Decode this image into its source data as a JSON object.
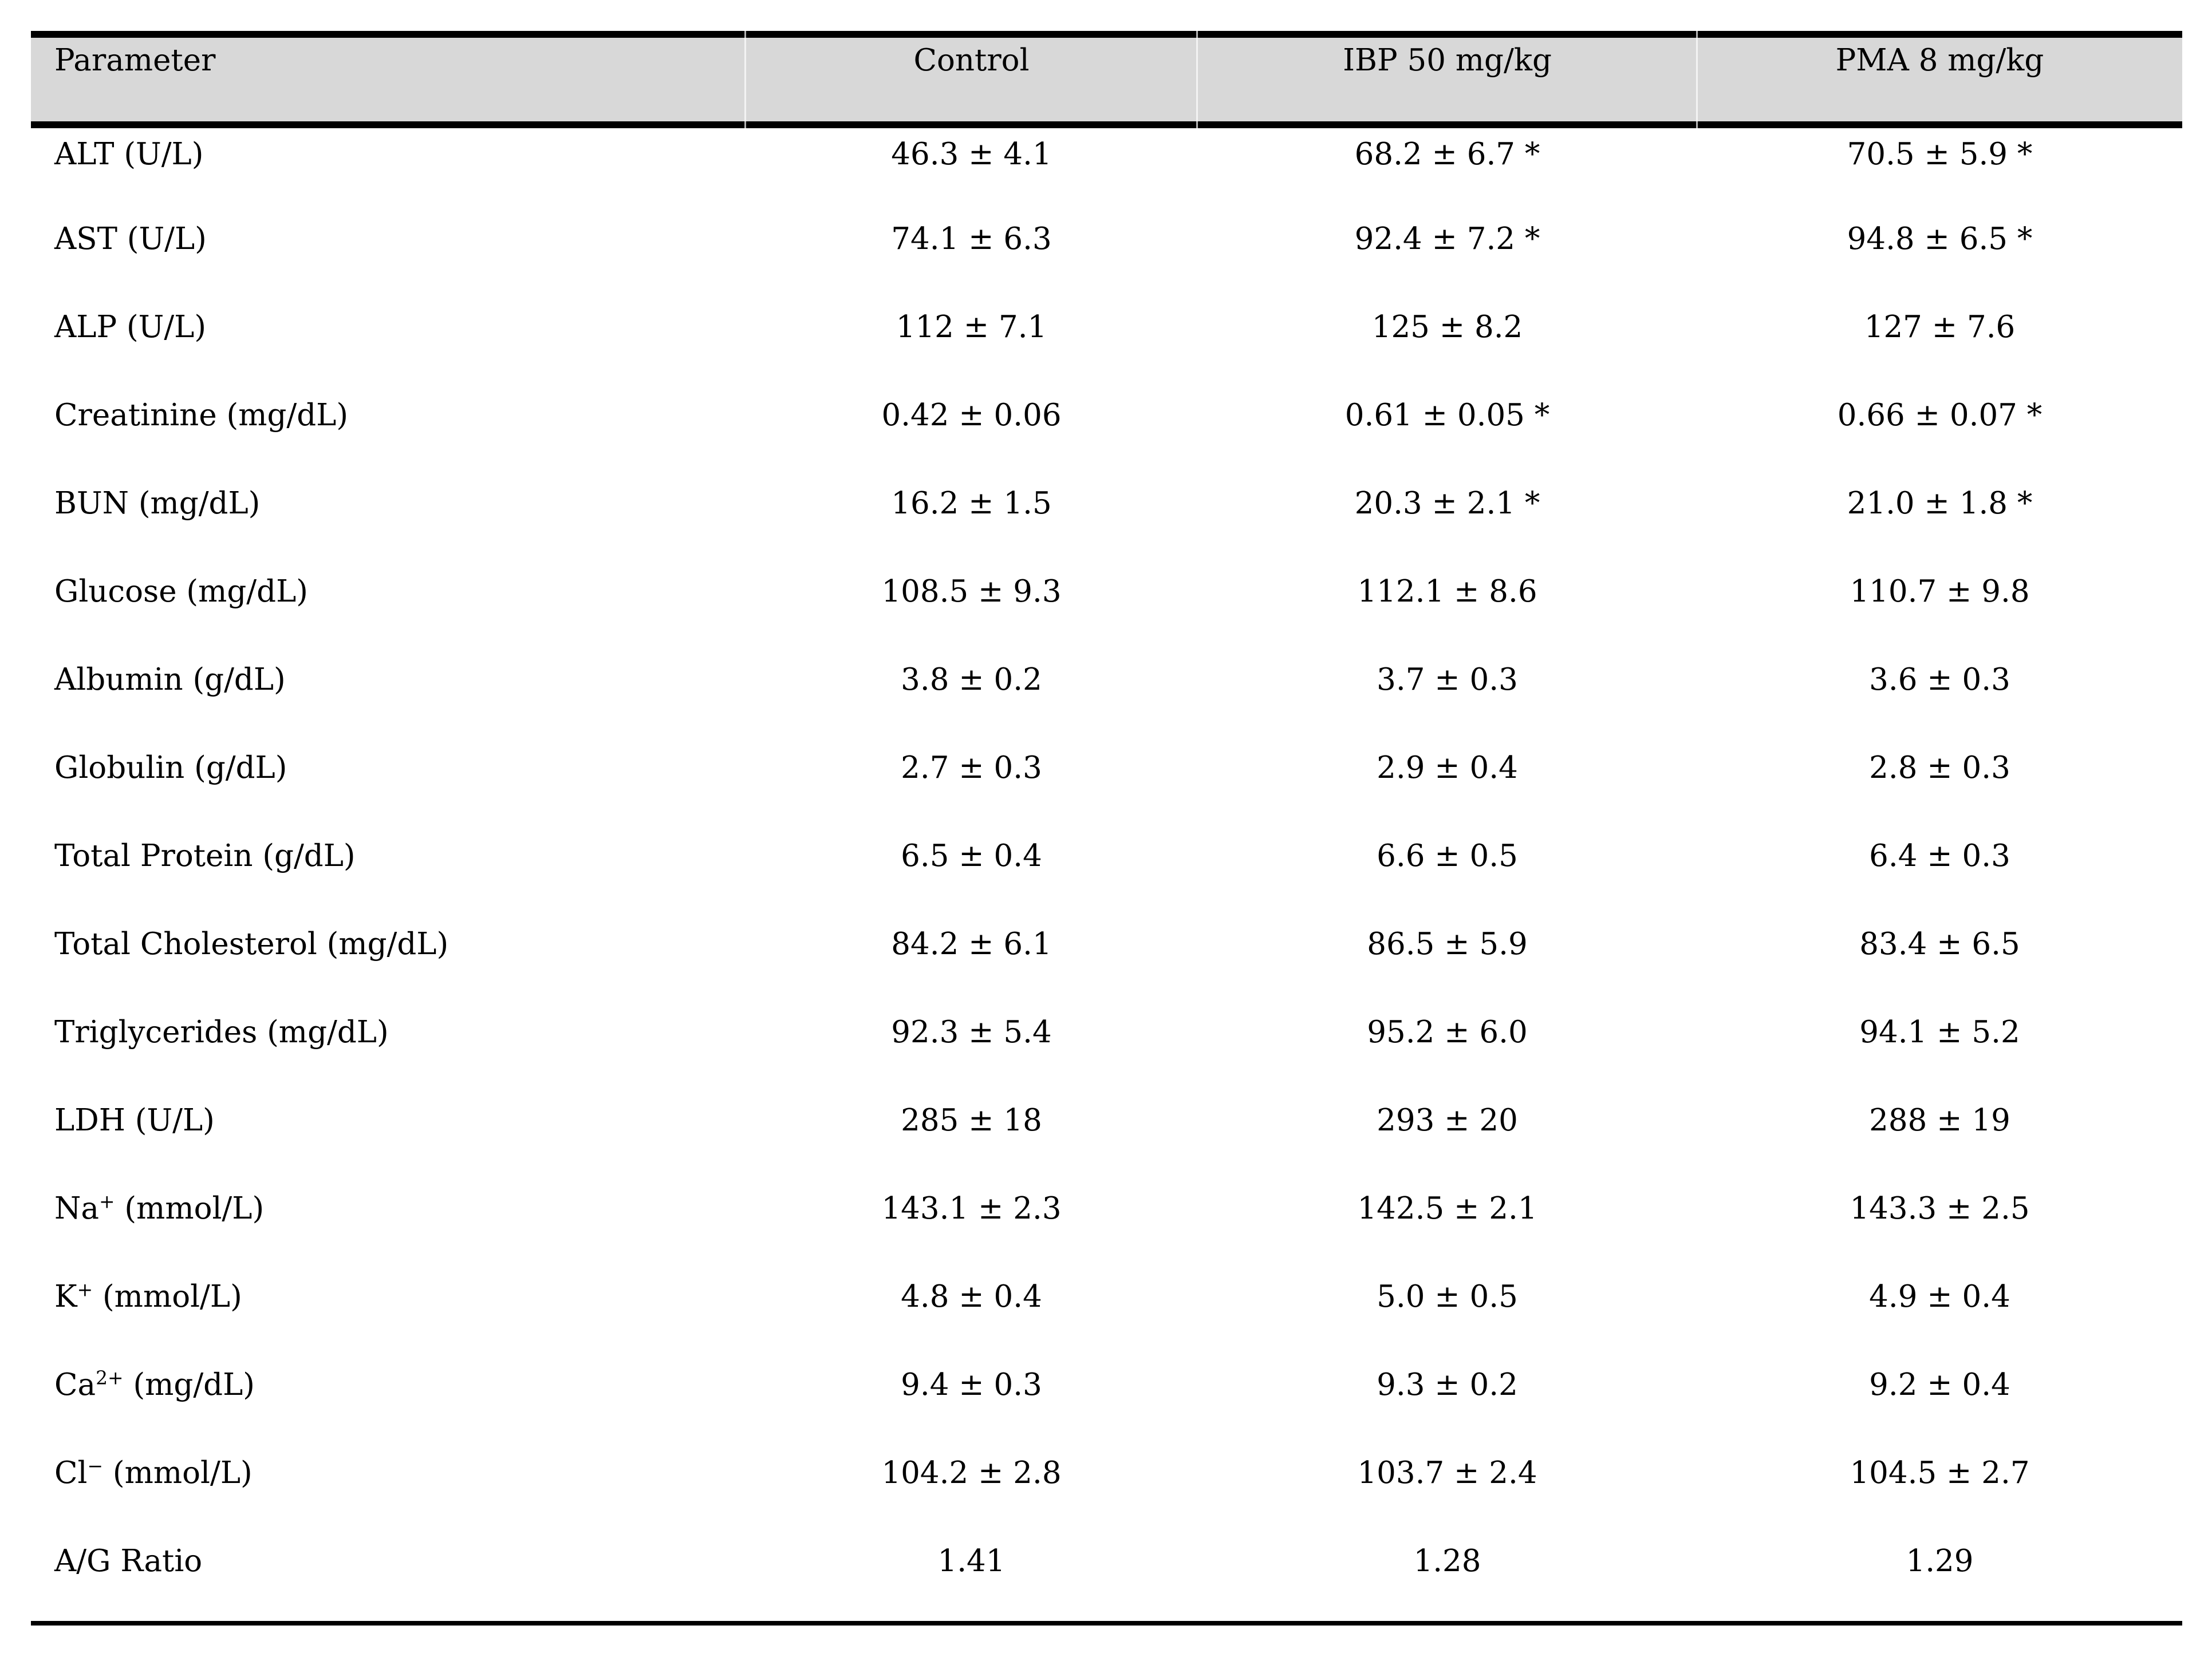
{
  "page": {
    "background": "#ffffff",
    "text_color": "#000000"
  },
  "table": {
    "header": {
      "bg_color": "#d8d8d8",
      "rule_color": "#000000",
      "columns": [
        "Parameter",
        "Control",
        "IBP 50 mg/kg",
        "PMA 8 mg/kg"
      ]
    },
    "significance_marker": "*",
    "rows": [
      {
        "param_base": "ALT (U/L)",
        "param_sup": "",
        "param_rest": "",
        "values": [
          "46.3 ± 4.1",
          "68.2 ± 6.7 *",
          "70.5 ± 5.9 *"
        ]
      },
      {
        "param_base": "AST (U/L)",
        "param_sup": "",
        "param_rest": "",
        "values": [
          "74.1 ± 6.3",
          "92.4 ± 7.2 *",
          "94.8 ± 6.5 *"
        ]
      },
      {
        "param_base": "ALP (U/L)",
        "param_sup": "",
        "param_rest": "",
        "values": [
          "112 ± 7.1",
          "125 ± 8.2",
          "127 ± 7.6"
        ]
      },
      {
        "param_base": "Creatinine (mg/dL)",
        "param_sup": "",
        "param_rest": "",
        "values": [
          "0.42 ± 0.06",
          "0.61 ± 0.05 *",
          "0.66 ± 0.07 *"
        ]
      },
      {
        "param_base": "BUN (mg/dL)",
        "param_sup": "",
        "param_rest": "",
        "values": [
          "16.2 ± 1.5",
          "20.3 ± 2.1 *",
          "21.0 ± 1.8 *"
        ]
      },
      {
        "param_base": "Glucose (mg/dL)",
        "param_sup": "",
        "param_rest": "",
        "values": [
          "108.5 ± 9.3",
          "112.1 ± 8.6",
          "110.7 ± 9.8"
        ]
      },
      {
        "param_base": "Albumin (g/dL)",
        "param_sup": "",
        "param_rest": "",
        "values": [
          "3.8 ± 0.2",
          "3.7 ± 0.3",
          "3.6 ± 0.3"
        ]
      },
      {
        "param_base": "Globulin (g/dL)",
        "param_sup": "",
        "param_rest": "",
        "values": [
          "2.7 ± 0.3",
          "2.9 ± 0.4",
          "2.8 ± 0.3"
        ]
      },
      {
        "param_base": "Total Protein (g/dL)",
        "param_sup": "",
        "param_rest": "",
        "values": [
          "6.5 ± 0.4",
          "6.6 ± 0.5",
          "6.4 ± 0.3"
        ]
      },
      {
        "param_base": "Total Cholesterol (mg/dL)",
        "param_sup": "",
        "param_rest": "",
        "values": [
          "84.2 ± 6.1",
          "86.5 ± 5.9",
          "83.4 ± 6.5"
        ]
      },
      {
        "param_base": "Triglycerides (mg/dL)",
        "param_sup": "",
        "param_rest": "",
        "values": [
          "92.3 ± 5.4",
          "95.2 ± 6.0",
          "94.1 ± 5.2"
        ]
      },
      {
        "param_base": "LDH (U/L)",
        "param_sup": "",
        "param_rest": "",
        "values": [
          "285 ± 18",
          "293 ± 20",
          "288 ± 19"
        ]
      },
      {
        "param_base": "Na",
        "param_sup": "+",
        "param_rest": " (mmol/L)",
        "values": [
          "143.1 ± 2.3",
          "142.5 ± 2.1",
          "143.3 ± 2.5"
        ]
      },
      {
        "param_base": "K",
        "param_sup": "+",
        "param_rest": " (mmol/L)",
        "values": [
          "4.8 ± 0.4",
          "5.0 ± 0.5",
          "4.9 ± 0.4"
        ]
      },
      {
        "param_base": "Ca",
        "param_sup": "2+",
        "param_rest": " (mg/dL)",
        "values": [
          "9.4 ± 0.3",
          "9.3 ± 0.2",
          "9.2 ± 0.4"
        ]
      },
      {
        "param_base": "Cl",
        "param_sup": "−",
        "param_rest": " (mmol/L)",
        "values": [
          "104.2 ± 2.8",
          "103.7 ± 2.4",
          "104.5 ± 2.7"
        ]
      },
      {
        "param_base": "A/G Ratio",
        "param_sup": "",
        "param_rest": "",
        "values": [
          "1.41",
          "1.28",
          "1.29"
        ]
      }
    ]
  }
}
